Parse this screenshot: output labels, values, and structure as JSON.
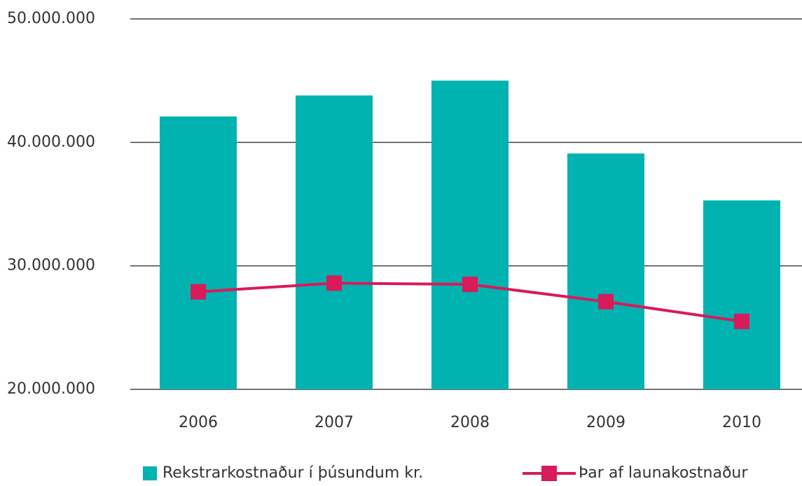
{
  "chart_data": {
    "type": "combo",
    "categories": [
      "2006",
      "2007",
      "2008",
      "2009",
      "2010"
    ],
    "series": [
      {
        "name": "Rekstrarkostnaður í þúsundum kr.",
        "type": "bar",
        "color": "#00b2b0",
        "values": [
          42100000,
          43800000,
          45000000,
          39100000,
          35300000
        ]
      },
      {
        "name": "Þar af launakostnaður",
        "type": "line",
        "color": "#d81b5a",
        "values": [
          27900000,
          28600000,
          28500000,
          27100000,
          25500000
        ]
      }
    ],
    "ylim": [
      20000000,
      50000000
    ],
    "yticks": [
      {
        "value": 20000000,
        "label": "20.000.000"
      },
      {
        "value": 30000000,
        "label": "30.000.000"
      },
      {
        "value": 40000000,
        "label": "40.000.000"
      },
      {
        "value": 50000000,
        "label": "50.000.000"
      }
    ],
    "grid": true,
    "legend": "bottom"
  }
}
